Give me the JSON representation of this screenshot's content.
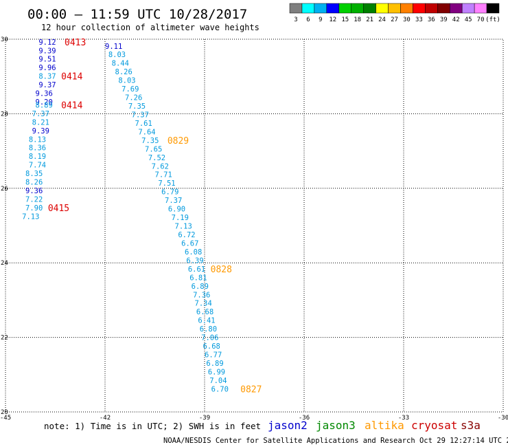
{
  "chart_data": {
    "type": "scatter",
    "title": "00:00 – 11:59 UTC 10/28/2017",
    "subtitle": "12 hour collection of altimeter wave heights",
    "xlim": [
      -45,
      -30
    ],
    "ylim": [
      20,
      30
    ],
    "x_ticks": [
      "-45",
      "-42",
      "-39",
      "-36",
      "-33",
      "-30"
    ],
    "y_ticks": [
      "30",
      "28",
      "26",
      "24",
      "22",
      "20"
    ],
    "grid": true,
    "color_scale": {
      "labels": [
        "3",
        "6",
        "9",
        "12",
        "15",
        "18",
        "21",
        "24",
        "27",
        "30",
        "33",
        "36",
        "39",
        "42",
        "45",
        "70",
        "(ft)"
      ],
      "colors": [
        "#7f7f7f",
        "#00ffff",
        "#00b0f0",
        "#0000ff",
        "#00d000",
        "#00b000",
        "#008000",
        "#ffff00",
        "#ffc000",
        "#ff8000",
        "#ff0000",
        "#c00000",
        "#800000",
        "#800080",
        "#c080ff",
        "#ff80ff",
        "#000000"
      ]
    },
    "points": [
      {
        "lon": -44.0,
        "lat": 29.93,
        "swh": "9.12"
      },
      {
        "lon": -44.0,
        "lat": 29.7,
        "swh": "9.39"
      },
      {
        "lon": -44.0,
        "lat": 29.47,
        "swh": "9.51"
      },
      {
        "lon": -44.0,
        "lat": 29.24,
        "swh": "9.96"
      },
      {
        "lon": -44.0,
        "lat": 29.01,
        "swh": "8.37"
      },
      {
        "lon": -44.0,
        "lat": 28.78,
        "swh": "9.37"
      },
      {
        "lon": -44.1,
        "lat": 28.55,
        "swh": "9.36"
      },
      {
        "lon": -44.1,
        "lat": 28.32,
        "swh": "9.20"
      },
      {
        "lon": -44.1,
        "lat": 28.24,
        "swh": "8.89"
      },
      {
        "lon": -44.2,
        "lat": 28.01,
        "swh": "7.37"
      },
      {
        "lon": -44.2,
        "lat": 27.78,
        "swh": "8.21"
      },
      {
        "lon": -44.2,
        "lat": 27.55,
        "swh": "9.39"
      },
      {
        "lon": -44.3,
        "lat": 27.32,
        "swh": "8.13"
      },
      {
        "lon": -44.3,
        "lat": 27.09,
        "swh": "8.36"
      },
      {
        "lon": -44.3,
        "lat": 26.86,
        "swh": "8.19"
      },
      {
        "lon": -44.3,
        "lat": 26.63,
        "swh": "7.74"
      },
      {
        "lon": -44.4,
        "lat": 26.4,
        "swh": "8.35"
      },
      {
        "lon": -44.4,
        "lat": 26.17,
        "swh": "8.26"
      },
      {
        "lon": -44.4,
        "lat": 25.94,
        "swh": "9.36"
      },
      {
        "lon": -44.4,
        "lat": 25.71,
        "swh": "7.22"
      },
      {
        "lon": -44.4,
        "lat": 25.48,
        "swh": "7.90"
      },
      {
        "lon": -44.5,
        "lat": 25.25,
        "swh": "7.13"
      },
      {
        "lon": -42.0,
        "lat": 29.82,
        "swh": "9.11"
      },
      {
        "lon": -41.9,
        "lat": 29.59,
        "swh": "8.03"
      },
      {
        "lon": -41.8,
        "lat": 29.36,
        "swh": "8.44"
      },
      {
        "lon": -41.7,
        "lat": 29.13,
        "swh": "8.26"
      },
      {
        "lon": -41.6,
        "lat": 28.9,
        "swh": "8.03"
      },
      {
        "lon": -41.5,
        "lat": 28.67,
        "swh": "7.69"
      },
      {
        "lon": -41.4,
        "lat": 28.44,
        "swh": "7.26"
      },
      {
        "lon": -41.3,
        "lat": 28.21,
        "swh": "7.35"
      },
      {
        "lon": -41.2,
        "lat": 27.98,
        "swh": "7.37"
      },
      {
        "lon": -41.1,
        "lat": 27.75,
        "swh": "7.61"
      },
      {
        "lon": -41.0,
        "lat": 27.52,
        "swh": "7.64"
      },
      {
        "lon": -40.9,
        "lat": 27.29,
        "swh": "7.35"
      },
      {
        "lon": -40.8,
        "lat": 27.06,
        "swh": "7.65"
      },
      {
        "lon": -40.7,
        "lat": 26.83,
        "swh": "7.52"
      },
      {
        "lon": -40.6,
        "lat": 26.6,
        "swh": "7.62"
      },
      {
        "lon": -40.5,
        "lat": 26.37,
        "swh": "7.71"
      },
      {
        "lon": -40.4,
        "lat": 26.14,
        "swh": "7.51"
      },
      {
        "lon": -40.3,
        "lat": 25.91,
        "swh": "6.79"
      },
      {
        "lon": -40.2,
        "lat": 25.68,
        "swh": "7.37"
      },
      {
        "lon": -40.1,
        "lat": 25.45,
        "swh": "6.90"
      },
      {
        "lon": -40.0,
        "lat": 25.22,
        "swh": "7.19"
      },
      {
        "lon": -39.9,
        "lat": 24.99,
        "swh": "7.13"
      },
      {
        "lon": -39.8,
        "lat": 24.76,
        "swh": "6.72"
      },
      {
        "lon": -39.7,
        "lat": 24.53,
        "swh": "6.67"
      },
      {
        "lon": -39.6,
        "lat": 24.3,
        "swh": "6.08"
      },
      {
        "lon": -39.55,
        "lat": 24.07,
        "swh": "6.39"
      },
      {
        "lon": -39.5,
        "lat": 23.84,
        "swh": "6.61"
      },
      {
        "lon": -39.45,
        "lat": 23.61,
        "swh": "6.81"
      },
      {
        "lon": -39.4,
        "lat": 23.38,
        "swh": "6.89"
      },
      {
        "lon": -39.35,
        "lat": 23.15,
        "swh": "7.36"
      },
      {
        "lon": -39.3,
        "lat": 22.92,
        "swh": "7.34"
      },
      {
        "lon": -39.25,
        "lat": 22.69,
        "swh": "6.68"
      },
      {
        "lon": -39.2,
        "lat": 22.46,
        "swh": "6.41"
      },
      {
        "lon": -39.15,
        "lat": 22.23,
        "swh": "6.80"
      },
      {
        "lon": -39.1,
        "lat": 22.0,
        "swh": "7.06"
      },
      {
        "lon": -39.05,
        "lat": 21.77,
        "swh": "6.68"
      },
      {
        "lon": -39.0,
        "lat": 21.54,
        "swh": "6.77"
      },
      {
        "lon": -38.95,
        "lat": 21.31,
        "swh": "6.89"
      },
      {
        "lon": -38.9,
        "lat": 21.08,
        "swh": "6.99"
      },
      {
        "lon": -38.85,
        "lat": 20.85,
        "swh": "7.04"
      },
      {
        "lon": -38.8,
        "lat": 20.62,
        "swh": "6.70"
      }
    ],
    "pass_labels": [
      {
        "text": "0413",
        "lon": -43.8,
        "lat": 29.93,
        "color": "#dd0000"
      },
      {
        "text": "0414",
        "lon": -43.9,
        "lat": 29.01,
        "color": "#dd0000"
      },
      {
        "text": "0414",
        "lon": -43.9,
        "lat": 28.24,
        "color": "#dd0000"
      },
      {
        "text": "0415",
        "lon": -44.3,
        "lat": 25.48,
        "color": "#dd0000"
      },
      {
        "text": "0829",
        "lon": -40.7,
        "lat": 27.29,
        "color": "#ff9900"
      },
      {
        "text": "0828",
        "lon": -39.4,
        "lat": 23.84,
        "color": "#ff9900"
      },
      {
        "text": "0827",
        "lon": -38.5,
        "lat": 20.62,
        "color": "#ff9900"
      }
    ],
    "legend": [
      {
        "name": "jason2",
        "color": "#0000cc"
      },
      {
        "name": "jason3",
        "color": "#008800"
      },
      {
        "name": "altika",
        "color": "#ff9900"
      },
      {
        "name": "cryosat",
        "color": "#cc0000"
      },
      {
        "name": "s3a",
        "color": "#880000"
      }
    ],
    "note": "note: 1) Time is in UTC; 2) SWH is in feet",
    "credit": "NOAA/NESDIS Center for Satellite Applications and Research    Oct 29 12:27:14 UTC 2017"
  }
}
